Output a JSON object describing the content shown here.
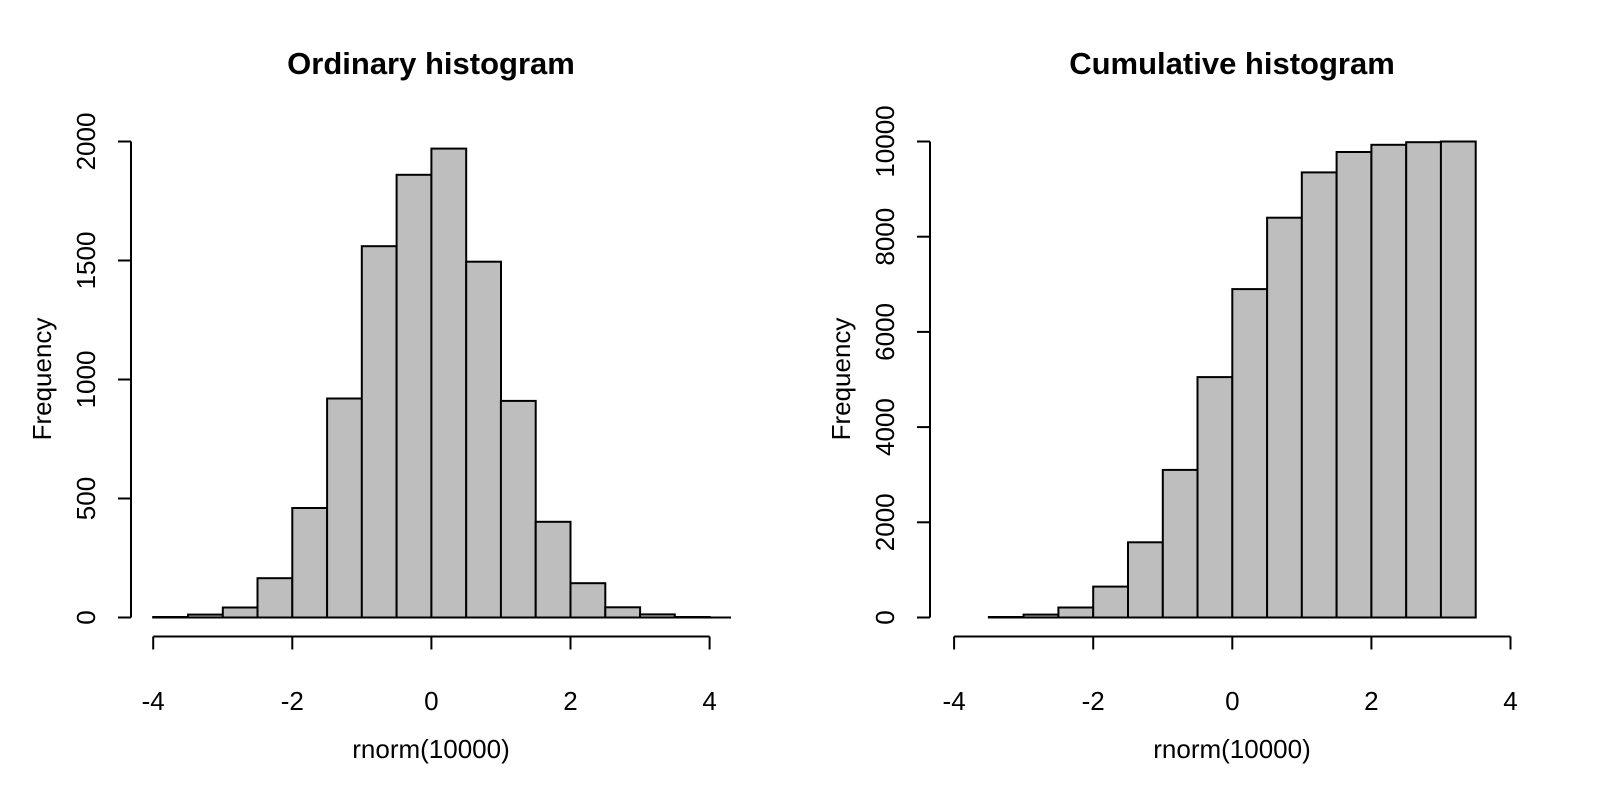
{
  "figure": {
    "background": "#ffffff",
    "bar_fill": "#bebebe",
    "bar_border": "#000000",
    "axis_color": "#000000",
    "text_color": "#000000"
  },
  "chart_data": [
    {
      "type": "bar",
      "title": "Ordinary histogram",
      "xlabel": "rnorm(10000)",
      "ylabel": "Frequency",
      "bin_start": -4,
      "bin_width": 0.5,
      "values": [
        2,
        12,
        42,
        165,
        460,
        920,
        1560,
        1860,
        1970,
        1495,
        910,
        402,
        144,
        43,
        13,
        2
      ],
      "x_ticks": [
        -4,
        -2,
        0,
        2,
        4
      ],
      "y_ticks": [
        0,
        500,
        1000,
        1500,
        2000
      ],
      "xlim": [
        -4.32,
        4.32
      ],
      "ylim": [
        0,
        2000
      ],
      "grid": false,
      "legend": "none"
    },
    {
      "type": "bar",
      "title": "Cumulative histogram",
      "xlabel": "rnorm(10000)",
      "ylabel": "Frequency",
      "bin_start": -3.5,
      "bin_width": 0.5,
      "values": [
        10,
        60,
        210,
        650,
        1580,
        3100,
        5050,
        6900,
        8400,
        9350,
        9780,
        9930,
        9985,
        10000
      ],
      "x_ticks": [
        -4,
        -2,
        0,
        2,
        4
      ],
      "y_ticks": [
        0,
        2000,
        4000,
        6000,
        8000,
        10000
      ],
      "xlim": [
        -4.32,
        4.32
      ],
      "ylim": [
        0,
        10000
      ],
      "grid": false,
      "legend": "none"
    }
  ]
}
